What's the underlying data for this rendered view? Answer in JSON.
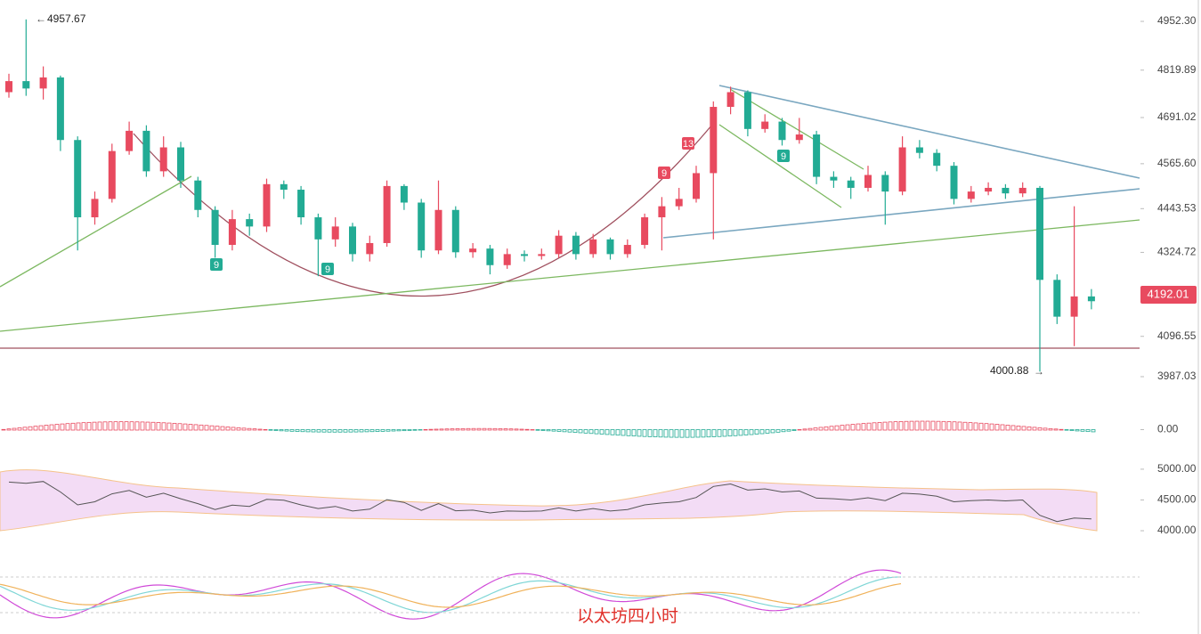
{
  "chart_data": {
    "type": "candlestick",
    "up_color": "#e84a5f",
    "down_color": "#22ab94",
    "open": [
      4760,
      4790,
      4770,
      4800,
      4630,
      4420,
      4470,
      4600,
      4655,
      4545,
      4610,
      4520,
      4440,
      4345,
      4415,
      4395,
      4510,
      4495,
      4420,
      4360,
      4395,
      4320,
      4350,
      4505,
      4460,
      4330,
      4440,
      4325,
      4335,
      4290,
      4320,
      4315,
      4320,
      4370,
      4320,
      4360,
      4320,
      4345,
      4420,
      4450,
      4470,
      4540,
      4720,
      4760,
      4660,
      4680,
      4630,
      4645,
      4530,
      4520,
      4500,
      4535,
      4490,
      4610,
      4595,
      4560,
      4470,
      4490,
      4500,
      4485,
      4500,
      4250,
      4150,
      4205
    ],
    "high": [
      4810,
      4957.67,
      4830,
      4805,
      4640,
      4490,
      4620,
      4680,
      4670,
      4640,
      4625,
      4530,
      4450,
      4440,
      4430,
      4525,
      4520,
      4505,
      4430,
      4420,
      4405,
      4370,
      4520,
      4510,
      4470,
      4520,
      4450,
      4350,
      4345,
      4335,
      4330,
      4335,
      4385,
      4380,
      4375,
      4365,
      4360,
      4430,
      4475,
      4500,
      4560,
      4735,
      4775,
      4765,
      4700,
      4690,
      4690,
      4655,
      4545,
      4530,
      4560,
      4545,
      4640,
      4630,
      4605,
      4570,
      4505,
      4515,
      4510,
      4515,
      4505,
      4265,
      4450,
      4225
    ],
    "low": [
      4745,
      4750,
      4740,
      4600,
      4330,
      4400,
      4460,
      4590,
      4530,
      4530,
      4500,
      4420,
      4310,
      4330,
      4370,
      4380,
      4470,
      4400,
      4260,
      4340,
      4300,
      4300,
      4340,
      4440,
      4310,
      4320,
      4310,
      4310,
      4265,
      4280,
      4300,
      4305,
      4310,
      4305,
      4310,
      4305,
      4310,
      4335,
      4330,
      4440,
      4460,
      4360,
      4700,
      4640,
      4650,
      4615,
      4620,
      4510,
      4500,
      4470,
      4490,
      4400,
      4480,
      4580,
      4545,
      4455,
      4460,
      4480,
      4470,
      4475,
      4000.88,
      4130,
      4070,
      4170
    ],
    "close": [
      4790,
      4770,
      4800,
      4630,
      4420,
      4470,
      4600,
      4655,
      4545,
      4610,
      4520,
      4440,
      4345,
      4415,
      4395,
      4510,
      4495,
      4420,
      4360,
      4395,
      4320,
      4350,
      4505,
      4460,
      4330,
      4440,
      4325,
      4335,
      4290,
      4320,
      4315,
      4320,
      4370,
      4320,
      4360,
      4320,
      4345,
      4420,
      4450,
      4470,
      4540,
      4720,
      4760,
      4660,
      4680,
      4630,
      4645,
      4530,
      4520,
      4500,
      4535,
      4490,
      4610,
      4595,
      4560,
      4470,
      4490,
      4500,
      4485,
      4500,
      4250,
      4150,
      4205,
      4192.01
    ],
    "ylim": [
      3933.8,
      5010.4
    ],
    "yticks": [
      {
        "value": 4952.3,
        "label": "4952.30"
      },
      {
        "value": 4819.89,
        "label": "4819.89"
      },
      {
        "value": 4691.02,
        "label": "4691.02"
      },
      {
        "value": 4565.6,
        "label": "4565.60"
      },
      {
        "value": 4443.53,
        "label": "4443.53"
      },
      {
        "value": 4324.72,
        "label": "4324.72"
      },
      {
        "value": 4096.55,
        "label": "4096.55"
      },
      {
        "value": 3987.03,
        "label": "3987.03"
      }
    ],
    "high_label": "4957.67",
    "low_label": "4000.88",
    "last_price_label": "4192.01",
    "td_labels": [
      "9",
      "9",
      "9",
      "9",
      "13"
    ],
    "title": "以太坊四小时",
    "macd_panel": {
      "ylim": [
        -100,
        100
      ],
      "yticks": [
        {
          "value": 0,
          "label": "0.00"
        }
      ]
    },
    "bb_panel": {
      "ylim": [
        3870,
        5100
      ],
      "yticks": [
        {
          "value": 5000,
          "label": "5000.00"
        },
        {
          "value": 4500,
          "label": "4500.00"
        },
        {
          "value": 4000,
          "label": "4000.00"
        }
      ]
    }
  }
}
